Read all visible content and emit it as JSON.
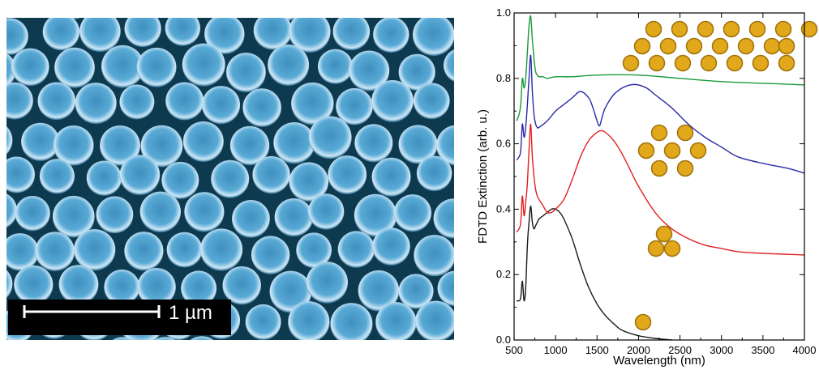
{
  "micrograph": {
    "scale_bar_label": "1 µm",
    "particle_color": "#4a9fcf",
    "background_color": "#0e3a50"
  },
  "chart_data": {
    "type": "line",
    "xlabel": "Wavelength (nm)",
    "ylabel": "FDTD Extinction (arb. u.)",
    "xlim": [
      500,
      4000
    ],
    "ylim": [
      0,
      1.0
    ],
    "xticks": [
      500,
      1000,
      1500,
      2000,
      2500,
      3000,
      3500,
      4000
    ],
    "yticks": [
      0.0,
      0.2,
      0.4,
      0.6,
      0.8,
      1.0
    ],
    "xtick_labels": [
      "500",
      "1000",
      "1500",
      "2000",
      "2500",
      "3000",
      "3500",
      "4000"
    ],
    "ytick_labels": [
      "0.0",
      "0.2",
      "0.4",
      "0.6",
      "0.8",
      "1.0"
    ],
    "grid": false,
    "legend": "none",
    "series": [
      {
        "color": "#1a1a1a",
        "inset": "single nanoparticle",
        "x": [
          530,
          560,
          580,
          600,
          620,
          640,
          660,
          680,
          700,
          720,
          740,
          760,
          780,
          800,
          850,
          900,
          950,
          1000,
          1050,
          1100,
          1200,
          1300,
          1400,
          1500,
          1600,
          1700,
          1800,
          2000,
          2200,
          2400
        ],
        "y": [
          0.12,
          0.12,
          0.13,
          0.18,
          0.12,
          0.16,
          0.29,
          0.36,
          0.41,
          0.36,
          0.34,
          0.35,
          0.36,
          0.37,
          0.38,
          0.39,
          0.4,
          0.4,
          0.39,
          0.37,
          0.31,
          0.23,
          0.16,
          0.11,
          0.075,
          0.05,
          0.03,
          0.013,
          0.005,
          0.0
        ]
      },
      {
        "color": "#e02020",
        "inset": "trimer",
        "x": [
          530,
          560,
          580,
          600,
          620,
          640,
          660,
          680,
          700,
          720,
          740,
          760,
          780,
          800,
          850,
          900,
          950,
          1000,
          1100,
          1200,
          1300,
          1400,
          1500,
          1550,
          1600,
          1700,
          1800,
          1900,
          2000,
          2200,
          2400,
          2600,
          2800,
          3000,
          3200,
          3500,
          3800,
          4000
        ],
        "y": [
          0.33,
          0.34,
          0.36,
          0.44,
          0.38,
          0.42,
          0.48,
          0.58,
          0.66,
          0.56,
          0.5,
          0.46,
          0.44,
          0.43,
          0.41,
          0.39,
          0.39,
          0.4,
          0.43,
          0.49,
          0.56,
          0.61,
          0.635,
          0.64,
          0.635,
          0.61,
          0.57,
          0.52,
          0.47,
          0.39,
          0.34,
          0.31,
          0.29,
          0.28,
          0.27,
          0.265,
          0.262,
          0.26
        ]
      },
      {
        "color": "#2a2aa8",
        "inset": "heptamer",
        "x": [
          530,
          560,
          580,
          600,
          620,
          640,
          660,
          680,
          700,
          720,
          740,
          760,
          780,
          800,
          900,
          1000,
          1100,
          1200,
          1300,
          1400,
          1450,
          1500,
          1530,
          1560,
          1600,
          1700,
          1800,
          1900,
          2000,
          2100,
          2200,
          2400,
          2600,
          2800,
          3000,
          3200,
          3500,
          3800,
          4000
        ],
        "y": [
          0.55,
          0.56,
          0.58,
          0.66,
          0.62,
          0.65,
          0.72,
          0.8,
          0.87,
          0.76,
          0.69,
          0.66,
          0.65,
          0.65,
          0.67,
          0.7,
          0.72,
          0.74,
          0.76,
          0.74,
          0.71,
          0.67,
          0.655,
          0.68,
          0.71,
          0.75,
          0.77,
          0.78,
          0.78,
          0.77,
          0.75,
          0.71,
          0.66,
          0.62,
          0.59,
          0.56,
          0.54,
          0.525,
          0.51
        ]
      },
      {
        "color": "#1a9a3a",
        "inset": "extended close-packed array",
        "x": [
          530,
          560,
          580,
          600,
          620,
          640,
          660,
          680,
          700,
          720,
          740,
          760,
          780,
          800,
          850,
          900,
          1000,
          1200,
          1500,
          2000,
          2500,
          3000,
          3500,
          4000
        ],
        "y": [
          0.67,
          0.69,
          0.72,
          0.8,
          0.77,
          0.8,
          0.88,
          0.96,
          0.99,
          0.92,
          0.86,
          0.82,
          0.81,
          0.805,
          0.805,
          0.8,
          0.805,
          0.805,
          0.81,
          0.81,
          0.8,
          0.79,
          0.785,
          0.78
        ]
      }
    ]
  }
}
